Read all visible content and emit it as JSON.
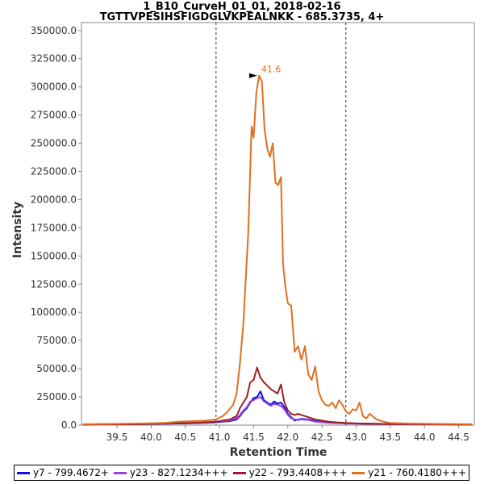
{
  "chart_data": {
    "type": "line",
    "title": "1_B10_CurveH_01_01, 2018-02-16",
    "subtitle": "TGTTVPESIHSFIGDGLVKPEALNKK - 685.3735, 4+",
    "xlabel": "Retention Time",
    "ylabel": "Intensity",
    "xlim": [
      38.98,
      44.73
    ],
    "ylim": [
      0,
      357000
    ],
    "x_ticks": [
      "39.5",
      "40.0",
      "40.5",
      "41.0",
      "41.5",
      "42.0",
      "42.5",
      "43.0",
      "43.5",
      "44.0",
      "44.5"
    ],
    "y_ticks": [
      "0.0",
      "25000.0",
      "50000.0",
      "75000.0",
      "100000.0",
      "125000.0",
      "150000.0",
      "175000.0",
      "200000.0",
      "225000.0",
      "250000.0",
      "275000.0",
      "300000.0",
      "325000.0",
      "350000.0"
    ],
    "peak_boundaries": [
      40.95,
      42.85
    ],
    "peak_annotation": {
      "label": "41.6",
      "x": 41.6,
      "y": 310000
    },
    "grid": false,
    "legend_position": "bottom",
    "series": [
      {
        "name": "y7 - 799.4672+",
        "color": "#1010e0",
        "x": [
          39.0,
          39.3,
          39.6,
          39.9,
          40.2,
          40.5,
          40.8,
          40.95,
          41.05,
          41.15,
          41.25,
          41.3,
          41.35,
          41.4,
          41.45,
          41.5,
          41.55,
          41.6,
          41.65,
          41.7,
          41.75,
          41.8,
          41.85,
          41.9,
          41.95,
          42.0,
          42.05,
          42.1,
          42.15,
          42.2,
          42.3,
          42.4,
          42.5,
          42.6,
          42.7,
          42.85,
          43.0,
          43.2,
          43.5,
          43.8,
          44.1,
          44.4,
          44.7
        ],
        "values": [
          500,
          800,
          700,
          1000,
          1200,
          1500,
          2000,
          2500,
          3000,
          3500,
          5000,
          8000,
          12000,
          15000,
          20000,
          24000,
          25000,
          30000,
          22000,
          20000,
          18000,
          21000,
          19000,
          20000,
          16000,
          10000,
          7000,
          4000,
          5000,
          5500,
          5000,
          3500,
          3000,
          2500,
          2000,
          1500,
          1500,
          1200,
          1000,
          800,
          800,
          600,
          500
        ]
      },
      {
        "name": "y23 - 827.1234+++",
        "color": "#9a40e0",
        "x": [
          39.0,
          39.3,
          39.6,
          39.9,
          40.2,
          40.5,
          40.8,
          40.95,
          41.05,
          41.15,
          41.25,
          41.3,
          41.35,
          41.4,
          41.45,
          41.5,
          41.55,
          41.6,
          41.65,
          41.7,
          41.75,
          41.8,
          41.85,
          41.9,
          41.95,
          42.0,
          42.05,
          42.1,
          42.15,
          42.2,
          42.3,
          42.4,
          42.5,
          42.6,
          42.7,
          42.85,
          43.0,
          43.2,
          43.5,
          43.8,
          44.1,
          44.4,
          44.7
        ],
        "values": [
          600,
          900,
          800,
          1100,
          1300,
          1800,
          2200,
          3000,
          3500,
          4000,
          6000,
          9000,
          13000,
          16000,
          21000,
          22000,
          24000,
          25000,
          21000,
          19000,
          17000,
          19000,
          18000,
          17000,
          14000,
          9000,
          6000,
          5000,
          4500,
          5000,
          4500,
          3000,
          2500,
          2000,
          1800,
          1500,
          1200,
          1000,
          800,
          700,
          700,
          600,
          500
        ]
      },
      {
        "name": "y22 - 793.4408+++",
        "color": "#a02020",
        "x": [
          39.0,
          39.3,
          39.6,
          39.9,
          40.2,
          40.5,
          40.8,
          40.95,
          41.05,
          41.15,
          41.25,
          41.3,
          41.35,
          41.4,
          41.45,
          41.5,
          41.55,
          41.6,
          41.65,
          41.7,
          41.75,
          41.8,
          41.85,
          41.9,
          41.95,
          42.0,
          42.05,
          42.1,
          42.15,
          42.2,
          42.3,
          42.4,
          42.5,
          42.6,
          42.7,
          42.85,
          43.0,
          43.2,
          43.5,
          43.8,
          44.1,
          44.4,
          44.7
        ],
        "values": [
          500,
          700,
          700,
          1000,
          1500,
          1800,
          2500,
          3000,
          4000,
          5000,
          8000,
          15000,
          20000,
          25000,
          38000,
          40000,
          51000,
          42000,
          38000,
          35000,
          32000,
          30000,
          28000,
          36000,
          20000,
          13000,
          10000,
          9000,
          10000,
          9000,
          7000,
          5000,
          4000,
          3000,
          2500,
          2000,
          1500,
          1200,
          1000,
          900,
          800,
          700,
          600
        ]
      },
      {
        "name": "y21 - 760.4180+++",
        "color": "#e07020",
        "x": [
          39.0,
          39.3,
          39.6,
          39.9,
          40.2,
          40.4,
          40.6,
          40.8,
          40.95,
          41.05,
          41.12,
          41.2,
          41.25,
          41.3,
          41.35,
          41.42,
          41.47,
          41.5,
          41.54,
          41.58,
          41.62,
          41.66,
          41.7,
          41.74,
          41.78,
          41.82,
          41.86,
          41.9,
          41.93,
          41.96,
          42.0,
          42.05,
          42.1,
          42.15,
          42.2,
          42.25,
          42.3,
          42.35,
          42.4,
          42.45,
          42.5,
          42.55,
          42.6,
          42.65,
          42.7,
          42.75,
          42.8,
          42.85,
          42.9,
          42.95,
          43.0,
          43.05,
          43.1,
          43.15,
          43.2,
          43.3,
          43.4,
          43.5,
          43.7,
          44.0,
          44.3,
          44.7
        ],
        "values": [
          800,
          1000,
          1200,
          1500,
          2000,
          3000,
          3500,
          4000,
          5000,
          8000,
          12000,
          18000,
          28000,
          55000,
          90000,
          170000,
          265000,
          255000,
          295000,
          310000,
          305000,
          262000,
          245000,
          238000,
          250000,
          215000,
          213000,
          220000,
          143000,
          125000,
          108000,
          106000,
          65000,
          70000,
          58000,
          70000,
          45000,
          40000,
          52000,
          30000,
          22000,
          18000,
          17000,
          20000,
          15000,
          22000,
          18000,
          12000,
          10000,
          14000,
          13000,
          20000,
          8000,
          6000,
          10000,
          5000,
          3000,
          2000,
          1500,
          1200,
          1000,
          800
        ]
      }
    ]
  }
}
